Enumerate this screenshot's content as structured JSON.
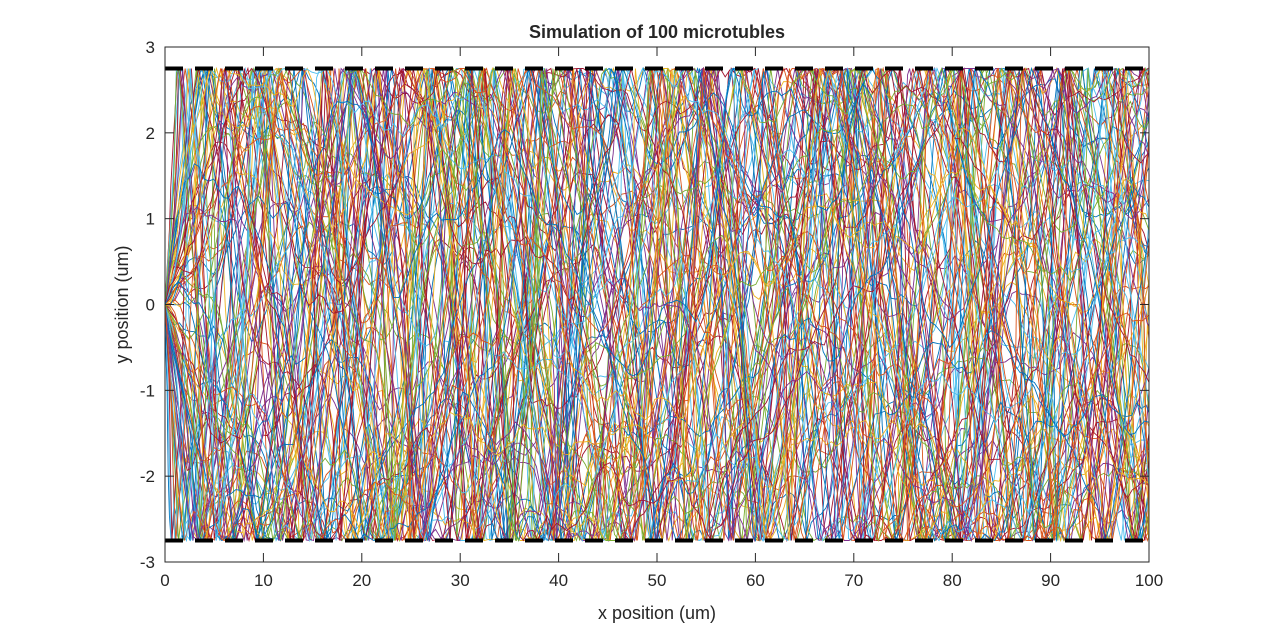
{
  "chart_data": {
    "type": "line",
    "title": "Simulation of 100 microtubles",
    "xlabel": "x position (um)",
    "ylabel": "y position (um)",
    "xlim": [
      0,
      100
    ],
    "ylim": [
      -3,
      3
    ],
    "xticks": [
      0,
      10,
      20,
      30,
      40,
      50,
      60,
      70,
      80,
      90,
      100
    ],
    "yticks": [
      -3,
      -2,
      -1,
      0,
      1,
      2,
      3
    ],
    "grid": false,
    "legend": "none",
    "n_series": 100,
    "series_description": "100 simulated microtubule trajectories starting at (0, 0) and confined between walls at y = ±2.75",
    "boundaries": [
      {
        "y": 2.75,
        "style": "dashed",
        "color": "#000000"
      },
      {
        "y": -2.75,
        "style": "dashed",
        "color": "#000000"
      }
    ],
    "colors": [
      "#0072BD",
      "#D95319",
      "#EDB120",
      "#7E2F8E",
      "#77AC30",
      "#4DBEEE",
      "#A2142F"
    ]
  }
}
